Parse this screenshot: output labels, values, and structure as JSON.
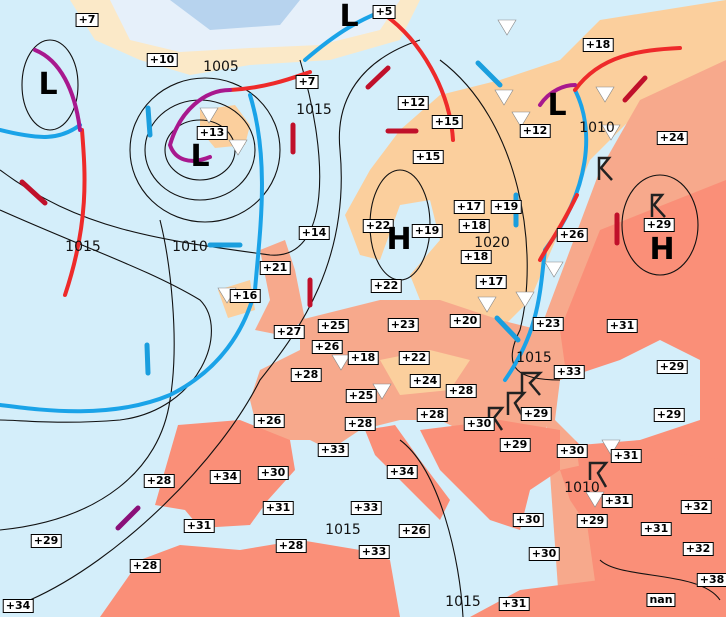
{
  "map": {
    "colors": {
      "sea": "#d4eefa",
      "land_mild": "#fbcf9d",
      "land_warm": "#f7a98c",
      "land_hot": "#fa8f78",
      "ice": "#b7d3ee",
      "cold_front": "#1aa3e8",
      "warm_front": "#ee2a2a",
      "occluded_front": "#a8188e",
      "warm_arrow": "#c0102a",
      "cold_arrow": "#1a9ede"
    },
    "pressure_centers": [
      "L",
      "L",
      "L",
      "L",
      "H",
      "H"
    ],
    "isobar_labels": [
      "1005",
      "1015",
      "1015",
      "1010",
      "1020",
      "1010",
      "1015",
      "1015",
      "1010",
      "1015"
    ],
    "temperatures": [
      "+7",
      "+10",
      "+5",
      "+7",
      "+13",
      "+18",
      "+12",
      "+15",
      "+12",
      "+24",
      "+15",
      "+14",
      "+22",
      "+19",
      "+17",
      "+19",
      "+18",
      "+18",
      "+17",
      "+26",
      "+29",
      "+21",
      "+16",
      "+22",
      "+27",
      "+25",
      "+26",
      "+18",
      "+23",
      "+22",
      "+20",
      "+23",
      "+31",
      "+28",
      "+24",
      "+25",
      "+28",
      "+33",
      "+29",
      "+28",
      "+30",
      "+29",
      "+29",
      "+26",
      "+28",
      "+33",
      "+29",
      "+30",
      "+31",
      "+34",
      "+28",
      "+34",
      "+30",
      "+31",
      "+31",
      "+29",
      "+32",
      "+31",
      "+33",
      "+26",
      "+30",
      "+31",
      "+29",
      "+28",
      "+28",
      "+33",
      "+30",
      "+32",
      "+38",
      "+34",
      "+31",
      "nan"
    ],
    "icons": [
      "shower-triangle-icon",
      "thunderstorm-icon",
      "wind-arrow-icon",
      "front-line-icon"
    ]
  }
}
